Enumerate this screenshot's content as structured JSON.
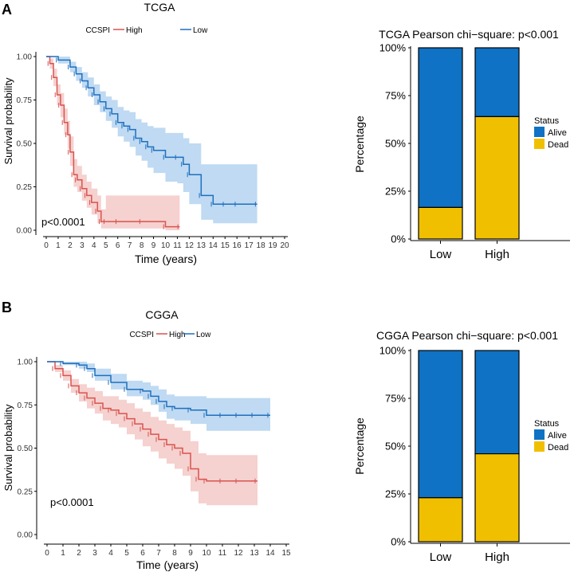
{
  "panels": [
    {
      "label": "A",
      "km": {
        "title": "TCGA",
        "legend_title": "CCSPI",
        "legend": [
          "High",
          "Low"
        ],
        "ylabel": "Survival probability",
        "xlabel": "Time (years)",
        "pvalue": "p<0.0001",
        "xticks": [
          "0",
          "1",
          "2",
          "3",
          "4",
          "5",
          "6",
          "7",
          "8",
          "9",
          "10",
          "11",
          "12",
          "13",
          "14",
          "15",
          "16",
          "17",
          "18",
          "19",
          "20"
        ],
        "yticks": [
          "0.00",
          "0.25",
          "0.50",
          "0.75",
          "1.00"
        ]
      },
      "bar": {
        "title": "TCGA Pearson chi−square: p<0.001",
        "ylabel": "Percentage",
        "yticks": [
          "0%",
          "25%",
          "50%",
          "75%",
          "100%"
        ],
        "categories": [
          "Low",
          "High"
        ],
        "legend_title": "Status",
        "legend": [
          "Alive",
          "Dead"
        ]
      }
    },
    {
      "label": "B",
      "km": {
        "title": "CGGA",
        "legend_title": "CCSPI",
        "legend": [
          "High",
          "Low"
        ],
        "ylabel": "Survival probability",
        "xlabel": "Time (years)",
        "pvalue": "p<0.0001",
        "xticks": [
          "0",
          "1",
          "2",
          "3",
          "4",
          "5",
          "6",
          "7",
          "8",
          "9",
          "10",
          "11",
          "12",
          "13",
          "14",
          "15"
        ],
        "yticks": [
          "0.00",
          "0.25",
          "0.50",
          "0.75",
          "1.00"
        ]
      },
      "bar": {
        "title": "CGGA Pearson chi−square: p<0.001",
        "ylabel": "Percentage",
        "yticks": [
          "0%",
          "25%",
          "50%",
          "75%",
          "100%"
        ],
        "categories": [
          "Low",
          "High"
        ],
        "legend_title": "Status",
        "legend": [
          "Alive",
          "Dead"
        ]
      }
    }
  ],
  "colors": {
    "high": "#d9534f",
    "high_fill": "#f2c1bf",
    "low": "#1f6fbf",
    "low_fill": "#a9cdee",
    "alive": "#0f72c4",
    "dead": "#f0c000"
  },
  "chart_data": [
    {
      "type": "line",
      "title": "TCGA",
      "xlabel": "Time (years)",
      "ylabel": "Survival probability",
      "xlim": [
        0,
        20
      ],
      "ylim": [
        0,
        1
      ],
      "series": [
        {
          "name": "High",
          "x": [
            0,
            0.3,
            0.6,
            0.9,
            1.2,
            1.5,
            1.8,
            2.0,
            2.3,
            2.6,
            3.0,
            3.4,
            3.8,
            4.3,
            4.6,
            5.0,
            6.0,
            8.0,
            10.0,
            11.2
          ],
          "y": [
            1.0,
            0.96,
            0.88,
            0.78,
            0.72,
            0.62,
            0.55,
            0.45,
            0.32,
            0.29,
            0.24,
            0.2,
            0.16,
            0.11,
            0.05,
            0.05,
            0.05,
            0.05,
            0.02,
            0.02
          ],
          "lower": [
            1.0,
            0.93,
            0.83,
            0.72,
            0.65,
            0.55,
            0.47,
            0.37,
            0.25,
            0.22,
            0.17,
            0.13,
            0.09,
            0.04,
            0.01,
            0.01,
            0.01,
            0.01,
            0.0,
            0.0
          ],
          "upper": [
            1.0,
            0.99,
            0.93,
            0.84,
            0.79,
            0.7,
            0.63,
            0.54,
            0.41,
            0.37,
            0.32,
            0.28,
            0.24,
            0.2,
            0.12,
            0.2,
            0.2,
            0.2,
            0.2,
            0.2
          ]
        },
        {
          "name": "Low",
          "x": [
            0,
            1.0,
            2.0,
            2.5,
            3.0,
            3.5,
            4.0,
            4.5,
            5.0,
            5.5,
            6.0,
            6.5,
            7.0,
            7.5,
            8.0,
            8.5,
            9.0,
            10.0,
            11.0,
            11.5,
            12.0,
            13.0,
            14.0,
            15.0,
            16.0,
            17.7
          ],
          "y": [
            1.0,
            0.98,
            0.94,
            0.9,
            0.86,
            0.82,
            0.78,
            0.74,
            0.7,
            0.67,
            0.62,
            0.6,
            0.58,
            0.53,
            0.51,
            0.48,
            0.46,
            0.42,
            0.42,
            0.38,
            0.32,
            0.2,
            0.15,
            0.15,
            0.15,
            0.15
          ],
          "lower": [
            1.0,
            0.96,
            0.91,
            0.86,
            0.82,
            0.77,
            0.72,
            0.68,
            0.63,
            0.59,
            0.54,
            0.51,
            0.48,
            0.43,
            0.4,
            0.36,
            0.33,
            0.28,
            0.27,
            0.22,
            0.15,
            0.06,
            0.04,
            0.04,
            0.04,
            0.04
          ],
          "upper": [
            1.0,
            1.0,
            0.97,
            0.94,
            0.91,
            0.88,
            0.84,
            0.8,
            0.77,
            0.75,
            0.71,
            0.69,
            0.68,
            0.64,
            0.62,
            0.6,
            0.59,
            0.56,
            0.56,
            0.53,
            0.5,
            0.38,
            0.38,
            0.38,
            0.38,
            0.38
          ]
        }
      ]
    },
    {
      "type": "bar",
      "title": "TCGA Pearson chi−square: p<0.001",
      "ylabel": "Percentage",
      "categories": [
        "Low",
        "High"
      ],
      "ylim": [
        0,
        100
      ],
      "series": [
        {
          "name": "Dead",
          "values": [
            16.5,
            64
          ]
        },
        {
          "name": "Alive",
          "values": [
            83.5,
            36
          ]
        }
      ]
    },
    {
      "type": "line",
      "title": "CGGA",
      "xlabel": "Time (years)",
      "ylabel": "Survival probability",
      "xlim": [
        0,
        15
      ],
      "ylim": [
        0,
        1
      ],
      "series": [
        {
          "name": "High",
          "x": [
            0,
            0.5,
            1.0,
            1.5,
            2.0,
            2.5,
            3.0,
            3.5,
            4.0,
            4.5,
            5.0,
            5.5,
            6.0,
            6.5,
            7.0,
            7.5,
            8.0,
            8.5,
            9.0,
            9.5,
            10.0,
            11.0,
            12.0,
            13.2
          ],
          "y": [
            1.0,
            0.96,
            0.92,
            0.86,
            0.82,
            0.79,
            0.76,
            0.73,
            0.72,
            0.7,
            0.67,
            0.64,
            0.61,
            0.58,
            0.55,
            0.52,
            0.5,
            0.47,
            0.38,
            0.32,
            0.31,
            0.31,
            0.31,
            0.31
          ],
          "lower": [
            1.0,
            0.94,
            0.89,
            0.82,
            0.77,
            0.73,
            0.7,
            0.66,
            0.64,
            0.62,
            0.58,
            0.55,
            0.51,
            0.48,
            0.44,
            0.41,
            0.38,
            0.34,
            0.25,
            0.18,
            0.17,
            0.17,
            0.17,
            0.17
          ],
          "upper": [
            1.0,
            0.98,
            0.95,
            0.9,
            0.87,
            0.85,
            0.83,
            0.8,
            0.8,
            0.78,
            0.76,
            0.73,
            0.71,
            0.68,
            0.66,
            0.64,
            0.62,
            0.6,
            0.54,
            0.47,
            0.46,
            0.46,
            0.46,
            0.46
          ]
        },
        {
          "name": "Low",
          "x": [
            0,
            1.0,
            2.0,
            2.5,
            3.0,
            4.0,
            5.0,
            6.0,
            6.5,
            7.0,
            7.5,
            8.0,
            9.0,
            10.0,
            11.0,
            12.0,
            13.0,
            14.0
          ],
          "y": [
            1.0,
            0.99,
            0.98,
            0.96,
            0.92,
            0.88,
            0.84,
            0.83,
            0.8,
            0.77,
            0.74,
            0.73,
            0.72,
            0.69,
            0.69,
            0.69,
            0.69,
            0.69
          ],
          "lower": [
            1.0,
            0.98,
            0.96,
            0.94,
            0.89,
            0.84,
            0.8,
            0.78,
            0.75,
            0.71,
            0.67,
            0.66,
            0.64,
            0.6,
            0.6,
            0.6,
            0.6,
            0.6
          ],
          "upper": [
            1.0,
            1.0,
            1.0,
            0.99,
            0.96,
            0.93,
            0.89,
            0.88,
            0.86,
            0.84,
            0.81,
            0.8,
            0.8,
            0.79,
            0.79,
            0.79,
            0.79,
            0.79
          ]
        }
      ]
    },
    {
      "type": "bar",
      "title": "CGGA Pearson chi−square: p<0.001",
      "ylabel": "Percentage",
      "categories": [
        "Low",
        "High"
      ],
      "ylim": [
        0,
        100
      ],
      "series": [
        {
          "name": "Dead",
          "values": [
            23,
            46
          ]
        },
        {
          "name": "Alive",
          "values": [
            77,
            54
          ]
        }
      ]
    }
  ]
}
